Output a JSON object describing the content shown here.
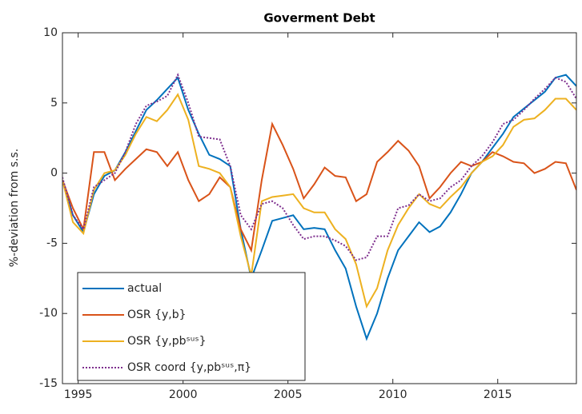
{
  "chart_data": {
    "type": "line",
    "title": "Goverment Debt",
    "ylabel": "%-deviation from s.s.",
    "x": [
      1994.25,
      1994.75,
      1995.25,
      1995.75,
      1996.25,
      1996.75,
      1997.25,
      1997.75,
      1998.25,
      1998.75,
      1999.25,
      1999.75,
      2000.25,
      2000.75,
      2001.25,
      2001.75,
      2002.25,
      2002.75,
      2003.25,
      2003.75,
      2004.25,
      2004.75,
      2005.25,
      2005.75,
      2006.25,
      2006.75,
      2007.25,
      2007.75,
      2008.25,
      2008.75,
      2009.25,
      2009.75,
      2010.25,
      2010.75,
      2011.25,
      2011.75,
      2012.25,
      2012.75,
      2013.25,
      2013.75,
      2014.25,
      2014.75,
      2015.25,
      2015.75,
      2016.25,
      2016.75,
      2017.25,
      2017.75,
      2018.25,
      2018.75
    ],
    "series": [
      {
        "name": "actual",
        "color": "#0072BD",
        "style": "solid",
        "values": [
          -0.5,
          -3.0,
          -4.2,
          -1.5,
          -0.2,
          0.2,
          1.5,
          3.0,
          4.5,
          5.2,
          6.0,
          6.8,
          4.5,
          2.8,
          1.3,
          1.0,
          0.5,
          -4.0,
          -7.5,
          -5.5,
          -3.4,
          -3.2,
          -3.0,
          -4.0,
          -3.9,
          -4.0,
          -5.5,
          -6.8,
          -9.5,
          -11.8,
          -10.0,
          -7.5,
          -5.5,
          -4.5,
          -3.5,
          -4.2,
          -3.8,
          -2.8,
          -1.5,
          0,
          0.8,
          1.8,
          2.8,
          4.0,
          4.6,
          5.2,
          5.8,
          6.8,
          7.0,
          6.2
        ]
      },
      {
        "name": "OSR {y,b}",
        "color": "#D95319",
        "style": "solid",
        "values": [
          -0.5,
          -2.5,
          -4.0,
          1.5,
          1.5,
          -0.5,
          0.3,
          1.0,
          1.7,
          1.5,
          0.5,
          1.5,
          -0.5,
          -2.0,
          -1.5,
          -0.3,
          -1.0,
          -4.0,
          -5.5,
          -0.5,
          3.5,
          2.0,
          0.3,
          -1.8,
          -0.8,
          0.4,
          -0.2,
          -0.3,
          -2.0,
          -1.5,
          0.8,
          1.5,
          2.3,
          1.6,
          0.5,
          -1.8,
          -1.0,
          0,
          0.8,
          0.5,
          0.8,
          1.5,
          1.2,
          0.8,
          0.7,
          0,
          0.3,
          0.8,
          0.7,
          -1.2
        ]
      },
      {
        "name": "OSR {y,pbˢᵘˢ}",
        "color": "#EDB120",
        "style": "solid",
        "values": [
          -0.5,
          -3.5,
          -4.3,
          -1.2,
          0,
          0.2,
          1.3,
          2.8,
          4.0,
          3.7,
          4.5,
          5.6,
          3.8,
          0.5,
          0.3,
          0,
          -1.0,
          -4.5,
          -7.3,
          -2.0,
          -1.7,
          -1.6,
          -1.5,
          -2.5,
          -2.8,
          -2.8,
          -4.0,
          -4.7,
          -6.5,
          -9.5,
          -8.2,
          -5.5,
          -3.7,
          -2.5,
          -1.5,
          -2.2,
          -2.5,
          -1.7,
          -1.0,
          0,
          0.8,
          1.2,
          2.0,
          3.3,
          3.8,
          3.9,
          4.5,
          5.3,
          5.3,
          4.5
        ]
      },
      {
        "name": "OSR coord {y,pbˢᵘˢ,π}",
        "color": "#7E2F8E",
        "style": "dotted",
        "values": [
          -0.3,
          -3.0,
          -4.0,
          -1.0,
          -0.5,
          0,
          1.5,
          3.5,
          4.8,
          5.1,
          5.5,
          7.0,
          5.0,
          2.6,
          2.5,
          2.4,
          0.5,
          -3.0,
          -4.0,
          -2.2,
          -2.0,
          -2.5,
          -3.7,
          -4.7,
          -4.5,
          -4.5,
          -4.8,
          -5.2,
          -6.2,
          -6.0,
          -4.5,
          -4.5,
          -2.5,
          -2.3,
          -1.5,
          -2.0,
          -1.8,
          -1.0,
          -0.5,
          0.5,
          1.2,
          2.2,
          3.5,
          3.8,
          4.5,
          5.3,
          6.0,
          6.8,
          6.5,
          5.3
        ]
      }
    ],
    "xlim": [
      1994.25,
      2018.75
    ],
    "xticks": [
      1995,
      2000,
      2005,
      2010,
      2015
    ],
    "ylim": [
      -15,
      10
    ],
    "yticks": [
      -15,
      -10,
      -5,
      0,
      5,
      10
    ],
    "grid": false,
    "legend_loc": "lower left"
  }
}
